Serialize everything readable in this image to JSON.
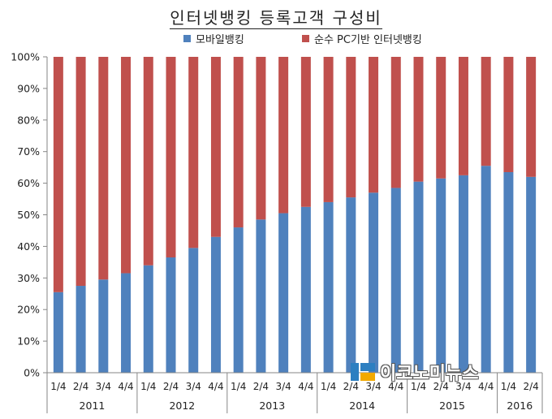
{
  "title": "인터넷뱅킹 등록고객 구성비",
  "legend": [
    {
      "name": "모바일뱅킹",
      "color": "#4F81BD"
    },
    {
      "name": "순수 PC기반 인터넷뱅킹",
      "color": "#C0504D"
    }
  ],
  "watermark": {
    "text": "이코노미뉴스"
  },
  "chart_data": {
    "type": "bar",
    "stacked": true,
    "title": "인터넷뱅킹 등록고객 구성비",
    "categories": [
      "1/4",
      "2/4",
      "3/4",
      "4/4",
      "1/4",
      "2/4",
      "3/4",
      "4/4",
      "1/4",
      "2/4",
      "3/4",
      "4/4",
      "1/4",
      "2/4",
      "3/4",
      "4/4",
      "1/4",
      "2/4",
      "3/4",
      "4/4",
      "1/4",
      "2/4"
    ],
    "year_groups": [
      {
        "label": "2011",
        "count": 4
      },
      {
        "label": "2012",
        "count": 4
      },
      {
        "label": "2013",
        "count": 4
      },
      {
        "label": "2014",
        "count": 4
      },
      {
        "label": "2015",
        "count": 4
      },
      {
        "label": "2016",
        "count": 2
      }
    ],
    "series": [
      {
        "name": "모바일뱅킹",
        "color": "#4F81BD",
        "values": [
          25.5,
          27.5,
          29.5,
          31.5,
          34,
          36.5,
          39.5,
          43,
          46,
          48.5,
          50.5,
          52.5,
          54,
          55.5,
          57,
          58.5,
          60.5,
          61.5,
          62.5,
          65.5,
          63.5,
          62
        ]
      },
      {
        "name": "순수 PC기반 인터넷뱅킹",
        "color": "#C0504D",
        "values": [
          74.5,
          72.5,
          70.5,
          68.5,
          66,
          63.5,
          60.5,
          57,
          54,
          51.5,
          49.5,
          47.5,
          46,
          44.5,
          43,
          41.5,
          39.5,
          38.5,
          37.5,
          34.5,
          36.5,
          38
        ]
      }
    ],
    "y_ticks": [
      "0%",
      "10%",
      "20%",
      "30%",
      "40%",
      "50%",
      "60%",
      "70%",
      "80%",
      "90%",
      "100%"
    ],
    "ylim": [
      0,
      100
    ],
    "grid": false,
    "legend_position": "top"
  }
}
